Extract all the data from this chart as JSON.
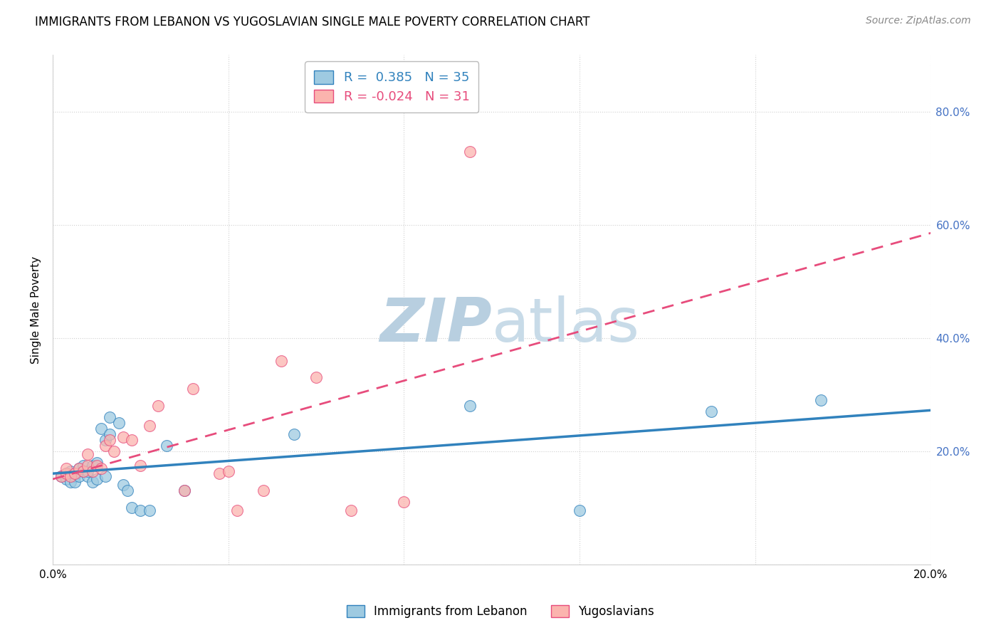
{
  "title": "IMMIGRANTS FROM LEBANON VS YUGOSLAVIAN SINGLE MALE POVERTY CORRELATION CHART",
  "source": "Source: ZipAtlas.com",
  "ylabel": "Single Male Poverty",
  "xlim": [
    0.0,
    0.2
  ],
  "ylim": [
    0.0,
    0.9
  ],
  "yticks": [
    0.0,
    0.2,
    0.4,
    0.6,
    0.8
  ],
  "ytick_labels": [
    "",
    "20.0%",
    "40.0%",
    "60.0%",
    "80.0%"
  ],
  "xticks": [
    0.0,
    0.04,
    0.08,
    0.12,
    0.16,
    0.2
  ],
  "xtick_labels": [
    "0.0%",
    "",
    "",
    "",
    "",
    "20.0%"
  ],
  "blue_R": 0.385,
  "blue_N": 35,
  "pink_R": -0.024,
  "pink_N": 31,
  "legend_labels": [
    "Immigrants from Lebanon",
    "Yugoslavians"
  ],
  "blue_color": "#9ecae1",
  "pink_color": "#fbb4ae",
  "blue_line_color": "#3182bd",
  "pink_line_color": "#e74c7c",
  "watermark_zip_color": "#c8d8ea",
  "watermark_atlas_color": "#a0bdd4",
  "background_color": "#ffffff",
  "grid_color": "#d0d0d0",
  "blue_scatter_x": [
    0.002,
    0.003,
    0.003,
    0.004,
    0.004,
    0.005,
    0.005,
    0.006,
    0.006,
    0.007,
    0.007,
    0.008,
    0.008,
    0.009,
    0.009,
    0.01,
    0.01,
    0.011,
    0.012,
    0.012,
    0.013,
    0.013,
    0.015,
    0.016,
    0.017,
    0.018,
    0.02,
    0.022,
    0.026,
    0.03,
    0.055,
    0.095,
    0.12,
    0.15,
    0.175
  ],
  "blue_scatter_y": [
    0.155,
    0.16,
    0.15,
    0.145,
    0.165,
    0.155,
    0.145,
    0.17,
    0.155,
    0.165,
    0.175,
    0.155,
    0.165,
    0.145,
    0.175,
    0.15,
    0.18,
    0.24,
    0.155,
    0.22,
    0.23,
    0.26,
    0.25,
    0.14,
    0.13,
    0.1,
    0.095,
    0.095,
    0.21,
    0.13,
    0.23,
    0.28,
    0.095,
    0.27,
    0.29
  ],
  "pink_scatter_x": [
    0.002,
    0.003,
    0.003,
    0.004,
    0.005,
    0.006,
    0.007,
    0.008,
    0.008,
    0.009,
    0.01,
    0.011,
    0.012,
    0.013,
    0.014,
    0.016,
    0.018,
    0.02,
    0.022,
    0.024,
    0.03,
    0.032,
    0.038,
    0.04,
    0.042,
    0.048,
    0.052,
    0.06,
    0.068,
    0.08,
    0.095
  ],
  "pink_scatter_y": [
    0.155,
    0.16,
    0.17,
    0.155,
    0.16,
    0.17,
    0.165,
    0.175,
    0.195,
    0.165,
    0.175,
    0.17,
    0.21,
    0.22,
    0.2,
    0.225,
    0.22,
    0.175,
    0.245,
    0.28,
    0.13,
    0.31,
    0.16,
    0.165,
    0.095,
    0.13,
    0.36,
    0.33,
    0.095,
    0.11,
    0.73
  ]
}
